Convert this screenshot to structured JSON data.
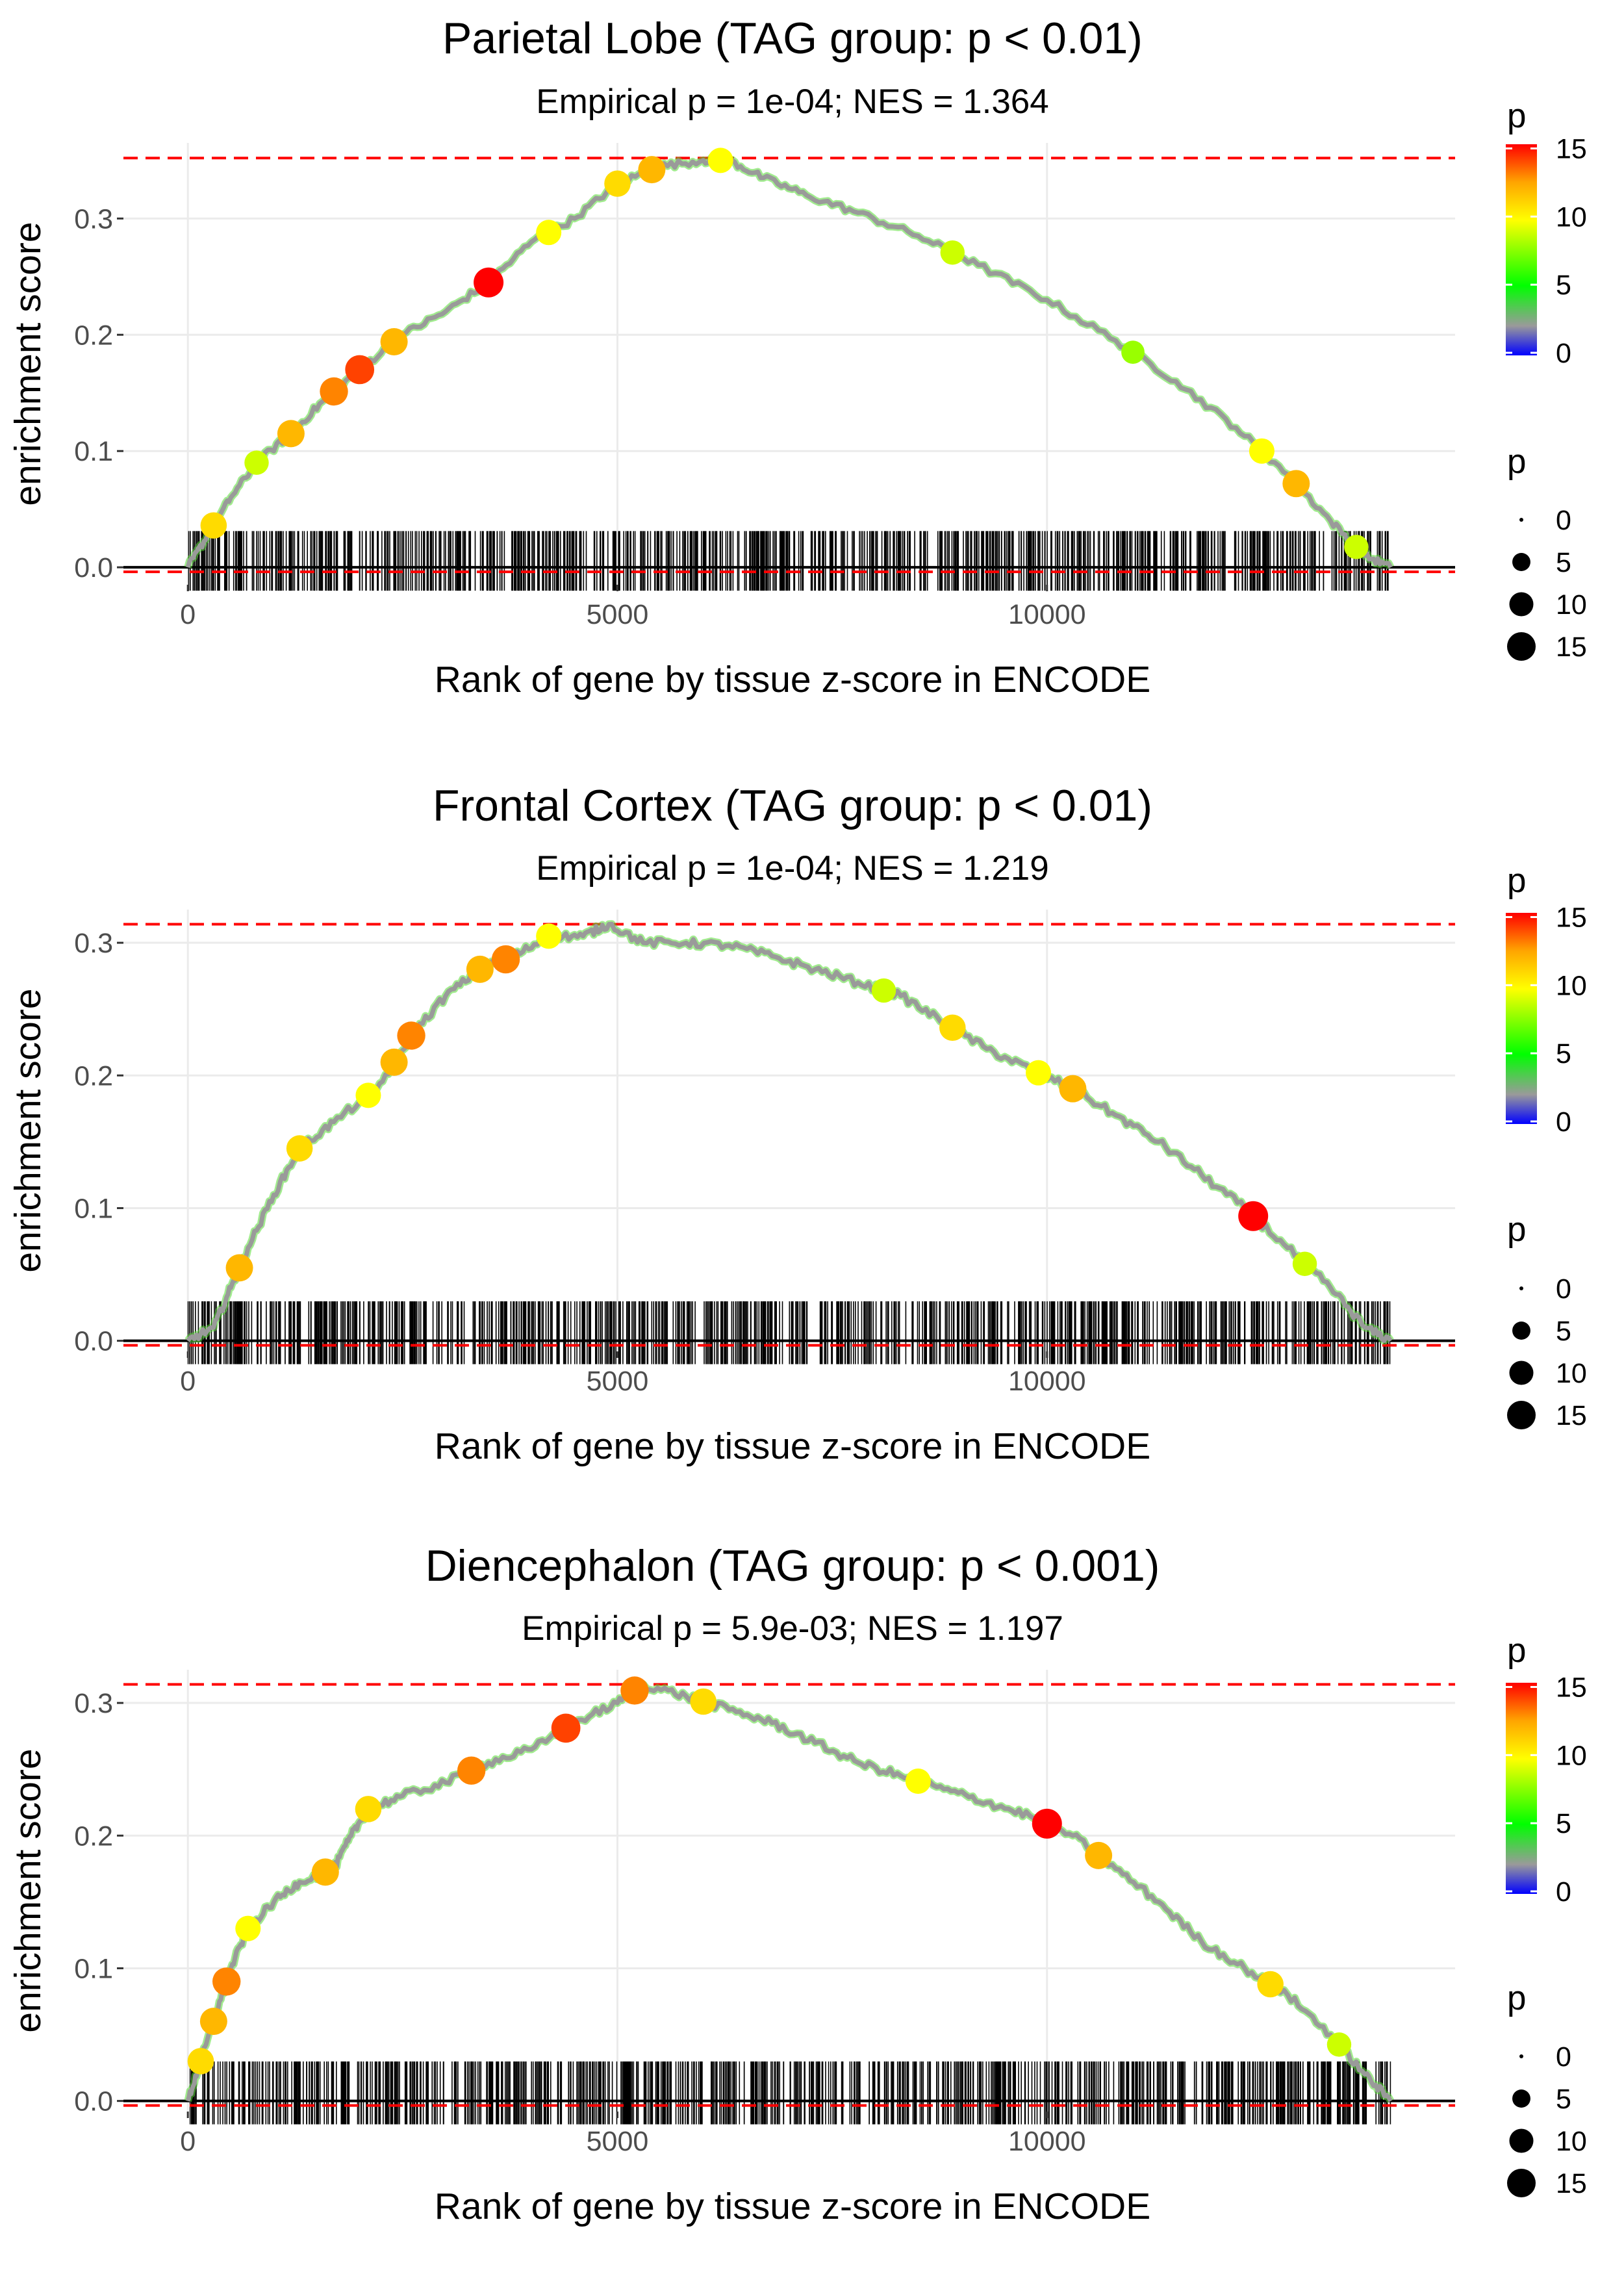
{
  "panels": [
    {
      "title": "Parietal Lobe (TAG group: p < 0.01)",
      "subtitle": "Empirical p = 1e-04; NES = 1.364",
      "xlabel": "Rank of gene by tissue z-score in ENCODE",
      "ylabel": "enrichment score"
    },
    {
      "title": "Frontal Cortex (TAG group: p < 0.01)",
      "subtitle": "Empirical p = 1e-04; NES = 1.219",
      "xlabel": "Rank of gene by tissue z-score in ENCODE",
      "ylabel": "enrichment score"
    },
    {
      "title": "Diencephalon (TAG group: p < 0.001)",
      "subtitle": "Empirical p = 5.9e-03; NES = 1.197",
      "xlabel": "Rank of gene by tissue z-score in ENCODE",
      "ylabel": "enrichment score"
    }
  ],
  "legend": {
    "color_title": "p",
    "color_ticks": [
      "15",
      "10",
      "5",
      "0"
    ],
    "size_title": "p",
    "size_labels": [
      "0",
      "5",
      "10",
      "15"
    ]
  },
  "colors": {
    "max_line": "#ff0000",
    "zero_line": "#000000",
    "curve": "#9a9a9a",
    "grid": "#ebebeb",
    "gradient": [
      "#0000ff",
      "#9a9a9a",
      "#00ff00",
      "#ffff00",
      "#ffa500",
      "#ff0000"
    ]
  },
  "chart_data": [
    {
      "type": "line",
      "title": "Parietal Lobe (TAG group: p < 0.01)",
      "subtitle": "Empirical p = 1e-04; NES = 1.364",
      "xlabel": "Rank of gene by tissue z-score in ENCODE",
      "ylabel": "enrichment score",
      "xlim": [
        -750,
        14750
      ],
      "ylim": [
        -0.015,
        0.365
      ],
      "x_ticks": [
        0,
        5000,
        10000
      ],
      "y_ticks": [
        0.0,
        0.1,
        0.2,
        0.3
      ],
      "max_es": 0.352,
      "curve": [
        [
          0,
          0
        ],
        [
          250,
          0.03
        ],
        [
          500,
          0.06
        ],
        [
          800,
          0.09
        ],
        [
          1200,
          0.115
        ],
        [
          1600,
          0.145
        ],
        [
          2000,
          0.17
        ],
        [
          2500,
          0.2
        ],
        [
          3000,
          0.22
        ],
        [
          3500,
          0.245
        ],
        [
          4000,
          0.28
        ],
        [
          4500,
          0.3
        ],
        [
          5000,
          0.33
        ],
        [
          5500,
          0.345
        ],
        [
          6000,
          0.35
        ],
        [
          6300,
          0.35
        ],
        [
          6700,
          0.335
        ],
        [
          7200,
          0.32
        ],
        [
          7800,
          0.305
        ],
        [
          8500,
          0.285
        ],
        [
          9200,
          0.26
        ],
        [
          10000,
          0.23
        ],
        [
          10800,
          0.195
        ],
        [
          11500,
          0.16
        ],
        [
          12200,
          0.12
        ],
        [
          12800,
          0.08
        ],
        [
          13300,
          0.04
        ],
        [
          13700,
          0.01
        ],
        [
          14000,
          0
        ]
      ],
      "highlights": [
        {
          "x": 300,
          "p": 11
        },
        {
          "x": 800,
          "p": 9
        },
        {
          "x": 1200,
          "p": 12
        },
        {
          "x": 1700,
          "p": 13
        },
        {
          "x": 2000,
          "p": 14
        },
        {
          "x": 2400,
          "p": 12
        },
        {
          "x": 3500,
          "p": 15
        },
        {
          "x": 4200,
          "p": 10
        },
        {
          "x": 5000,
          "p": 11
        },
        {
          "x": 5400,
          "p": 12
        },
        {
          "x": 6200,
          "p": 10
        },
        {
          "x": 8900,
          "p": 9
        },
        {
          "x": 11000,
          "p": 8
        },
        {
          "x": 12500,
          "p": 10
        },
        {
          "x": 12900,
          "p": 12
        },
        {
          "x": 13600,
          "p": 9
        }
      ],
      "rug_range": [
        0,
        14000
      ]
    },
    {
      "type": "line",
      "title": "Frontal Cortex (TAG group: p < 0.01)",
      "subtitle": "Empirical p = 1e-04; NES = 1.219",
      "xlabel": "Rank of gene by tissue z-score in ENCODE",
      "ylabel": "enrichment score",
      "xlim": [
        -750,
        14750
      ],
      "ylim": [
        -0.008,
        0.325
      ],
      "x_ticks": [
        0,
        5000,
        10000
      ],
      "y_ticks": [
        0.0,
        0.1,
        0.2,
        0.3
      ],
      "max_es": 0.314,
      "curve": [
        [
          0,
          0
        ],
        [
          300,
          0.01
        ],
        [
          500,
          0.04
        ],
        [
          700,
          0.07
        ],
        [
          1000,
          0.11
        ],
        [
          1300,
          0.145
        ],
        [
          1700,
          0.165
        ],
        [
          2200,
          0.19
        ],
        [
          2600,
          0.23
        ],
        [
          3000,
          0.26
        ],
        [
          3400,
          0.28
        ],
        [
          3800,
          0.29
        ],
        [
          4200,
          0.305
        ],
        [
          4600,
          0.305
        ],
        [
          4900,
          0.314
        ],
        [
          5300,
          0.3
        ],
        [
          5800,
          0.3
        ],
        [
          6300,
          0.298
        ],
        [
          6800,
          0.29
        ],
        [
          7300,
          0.28
        ],
        [
          7800,
          0.27
        ],
        [
          8300,
          0.26
        ],
        [
          8800,
          0.24
        ],
        [
          9300,
          0.22
        ],
        [
          9800,
          0.205
        ],
        [
          10300,
          0.19
        ],
        [
          10800,
          0.17
        ],
        [
          11300,
          0.15
        ],
        [
          11800,
          0.125
        ],
        [
          12300,
          0.1
        ],
        [
          12800,
          0.07
        ],
        [
          13300,
          0.04
        ],
        [
          13700,
          0.01
        ],
        [
          14000,
          0
        ]
      ],
      "highlights": [
        {
          "x": 600,
          "p": 12
        },
        {
          "x": 1300,
          "p": 11
        },
        {
          "x": 2100,
          "p": 10
        },
        {
          "x": 2400,
          "p": 12
        },
        {
          "x": 2600,
          "p": 13
        },
        {
          "x": 3400,
          "p": 12
        },
        {
          "x": 3700,
          "p": 13
        },
        {
          "x": 4200,
          "p": 10
        },
        {
          "x": 8100,
          "p": 9
        },
        {
          "x": 8900,
          "p": 11
        },
        {
          "x": 9900,
          "p": 10
        },
        {
          "x": 10300,
          "p": 12
        },
        {
          "x": 12400,
          "p": 15
        },
        {
          "x": 13000,
          "p": 9
        }
      ],
      "rug_range": [
        0,
        14000
      ]
    },
    {
      "type": "line",
      "title": "Diencephalon (TAG group: p < 0.001)",
      "subtitle": "Empirical p = 5.9e-03; NES = 1.197",
      "xlabel": "Rank of gene by tissue z-score in ENCODE",
      "ylabel": "enrichment score",
      "xlim": [
        -750,
        14750
      ],
      "ylim": [
        -0.008,
        0.325
      ],
      "x_ticks": [
        0,
        5000,
        10000
      ],
      "y_ticks": [
        0.0,
        0.1,
        0.2,
        0.3
      ],
      "max_es": 0.314,
      "curve": [
        [
          0,
          0
        ],
        [
          150,
          0.03
        ],
        [
          300,
          0.06
        ],
        [
          500,
          0.1
        ],
        [
          700,
          0.13
        ],
        [
          1000,
          0.15
        ],
        [
          1300,
          0.165
        ],
        [
          1700,
          0.175
        ],
        [
          1900,
          0.2
        ],
        [
          2100,
          0.22
        ],
        [
          2500,
          0.23
        ],
        [
          3000,
          0.24
        ],
        [
          3500,
          0.255
        ],
        [
          4000,
          0.265
        ],
        [
          4500,
          0.285
        ],
        [
          5000,
          0.3
        ],
        [
          5300,
          0.314
        ],
        [
          5800,
          0.305
        ],
        [
          6300,
          0.295
        ],
        [
          6800,
          0.285
        ],
        [
          7300,
          0.27
        ],
        [
          7800,
          0.255
        ],
        [
          8300,
          0.245
        ],
        [
          8800,
          0.235
        ],
        [
          9300,
          0.225
        ],
        [
          9800,
          0.215
        ],
        [
          10300,
          0.2
        ],
        [
          10800,
          0.175
        ],
        [
          11300,
          0.15
        ],
        [
          11800,
          0.12
        ],
        [
          12300,
          0.1
        ],
        [
          12800,
          0.08
        ],
        [
          13300,
          0.05
        ],
        [
          13700,
          0.02
        ],
        [
          14000,
          0
        ]
      ],
      "highlights": [
        {
          "x": 150,
          "p": 11
        },
        {
          "x": 300,
          "p": 12
        },
        {
          "x": 450,
          "p": 13
        },
        {
          "x": 700,
          "p": 10
        },
        {
          "x": 1600,
          "p": 12
        },
        {
          "x": 2100,
          "p": 11
        },
        {
          "x": 3300,
          "p": 13
        },
        {
          "x": 4400,
          "p": 14
        },
        {
          "x": 5200,
          "p": 13
        },
        {
          "x": 6000,
          "p": 11
        },
        {
          "x": 8500,
          "p": 10
        },
        {
          "x": 10000,
          "p": 15
        },
        {
          "x": 10600,
          "p": 12
        },
        {
          "x": 12600,
          "p": 11
        },
        {
          "x": 13400,
          "p": 9
        }
      ],
      "rug_range": [
        0,
        14000
      ]
    }
  ]
}
